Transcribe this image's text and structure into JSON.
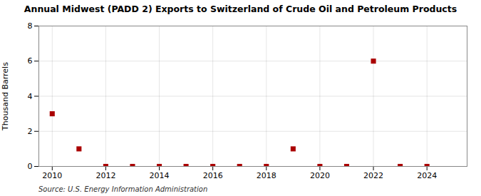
{
  "chart_data": {
    "type": "scatter",
    "title": "Annual Midwest (PADD 2) Exports to Switzerland of Crude Oil and Petroleum Products",
    "y_label": "Thousand Barrels",
    "annotations": [
      "Source: U.S. Energy Information Administration"
    ],
    "x": [
      2010,
      2011,
      2012,
      2013,
      2014,
      2015,
      2016,
      2017,
      2018,
      2019,
      2020,
      2021,
      2022,
      2023,
      2024
    ],
    "values": [
      3,
      1,
      0,
      0,
      0,
      0,
      0,
      0,
      0,
      1,
      0,
      0,
      6,
      0,
      0
    ],
    "color": "#aa0000",
    "marker": "square",
    "xlim": [
      2009.5,
      2025.5
    ],
    "xticks": [
      2010,
      2012,
      2014,
      2016,
      2018,
      2020,
      2022,
      2024
    ],
    "ylim": [
      0,
      8
    ],
    "yticks": [
      0,
      2,
      4,
      6,
      8
    ],
    "grid": true
  }
}
